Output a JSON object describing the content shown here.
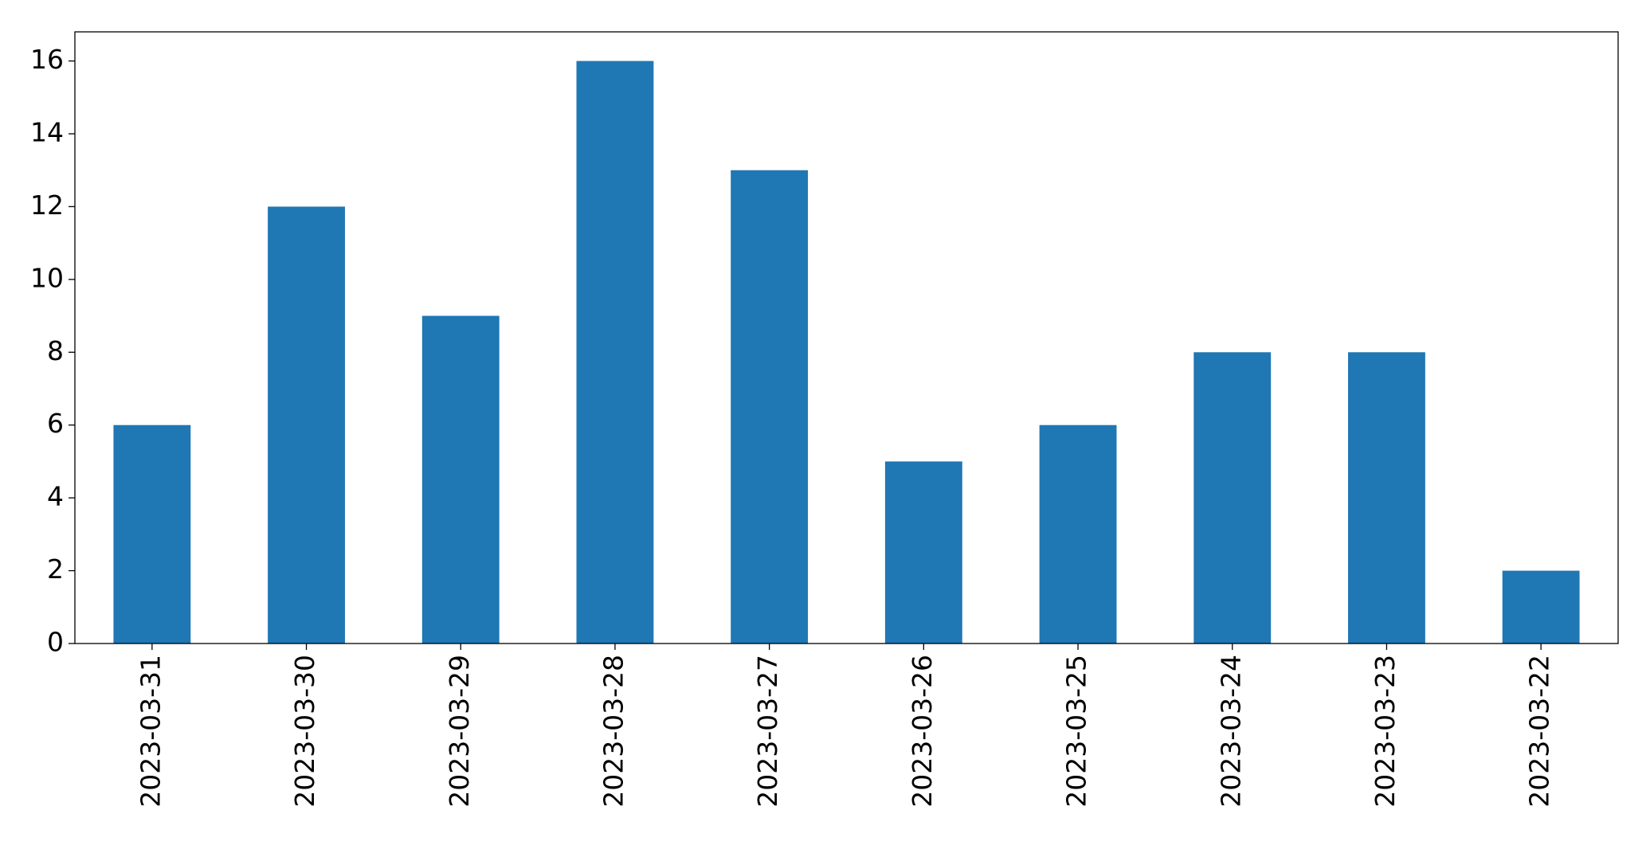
{
  "chart_data": {
    "type": "bar",
    "categories": [
      "2023-03-31",
      "2023-03-30",
      "2023-03-29",
      "2023-03-28",
      "2023-03-27",
      "2023-03-26",
      "2023-03-25",
      "2023-03-24",
      "2023-03-23",
      "2023-03-22"
    ],
    "values": [
      6,
      12,
      9,
      16,
      13,
      5,
      6,
      8,
      8,
      2
    ],
    "color": "#1f77b4",
    "ylim": [
      0,
      16.8
    ],
    "yticks": [
      0,
      2,
      4,
      6,
      8,
      10,
      12,
      14,
      16
    ],
    "grid": false
  }
}
